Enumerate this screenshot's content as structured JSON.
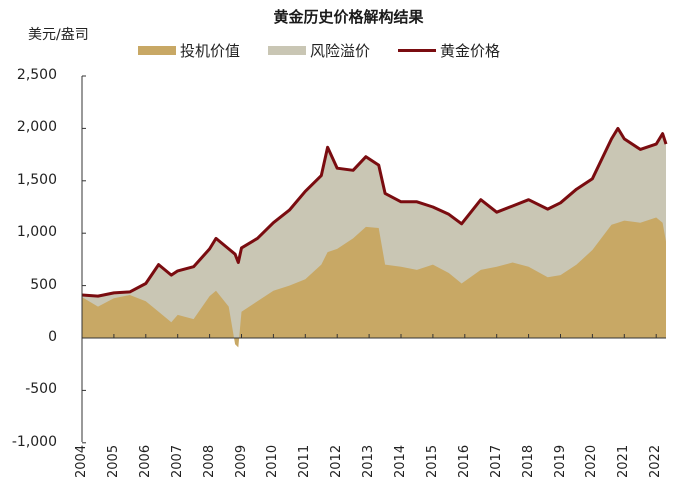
{
  "chart_data": {
    "type": "area",
    "title": "黄金历史价格解构结果",
    "ylabel": "美元/盎司",
    "xlabel": "",
    "ylim": [
      -1000,
      2500
    ],
    "yticks": [
      2500,
      2000,
      1500,
      1000,
      500,
      0,
      -500,
      -1000
    ],
    "ytick_labels": [
      "2,500",
      "2,000",
      "1,500",
      "1,000",
      "500",
      "0",
      "-500",
      "-1,000"
    ],
    "categories": [
      "2004",
      "2005",
      "2006",
      "2007",
      "2008",
      "2009",
      "2010",
      "2011",
      "2012",
      "2013",
      "2014",
      "2015",
      "2016",
      "2017",
      "2018",
      "2019",
      "2020",
      "2021",
      "2022"
    ],
    "legend_position": "top",
    "grid": false,
    "x": [
      2004.0,
      2004.5,
      2005.0,
      2005.5,
      2006.0,
      2006.4,
      2006.8,
      2007.0,
      2007.5,
      2008.0,
      2008.2,
      2008.6,
      2008.8,
      2008.9,
      2009.0,
      2009.5,
      2010.0,
      2010.5,
      2011.0,
      2011.5,
      2011.7,
      2012.0,
      2012.5,
      2012.9,
      2013.3,
      2013.5,
      2014.0,
      2014.5,
      2015.0,
      2015.5,
      2015.9,
      2016.5,
      2017.0,
      2017.5,
      2018.0,
      2018.6,
      2019.0,
      2019.5,
      2020.0,
      2020.6,
      2020.8,
      2021.0,
      2021.5,
      2022.0,
      2022.2,
      2022.4
    ],
    "series": [
      {
        "name": "投机价值",
        "color": "#c8a865",
        "kind": "area",
        "values": [
          390,
          300,
          380,
          410,
          350,
          250,
          150,
          220,
          180,
          400,
          450,
          300,
          -60,
          -90,
          250,
          350,
          450,
          500,
          560,
          700,
          820,
          850,
          950,
          1060,
          1050,
          700,
          680,
          650,
          700,
          620,
          520,
          650,
          680,
          720,
          680,
          580,
          600,
          700,
          840,
          1080,
          1100,
          1120,
          1100,
          1150,
          1100,
          920
        ]
      },
      {
        "name": "风险溢价",
        "color": "#c9c6b4",
        "kind": "area_total",
        "values": [
          410,
          400,
          430,
          440,
          520,
          700,
          600,
          640,
          680,
          850,
          950,
          850,
          800,
          720,
          860,
          950,
          1100,
          1220,
          1400,
          1550,
          1820,
          1620,
          1600,
          1730,
          1650,
          1380,
          1300,
          1300,
          1250,
          1180,
          1090,
          1320,
          1200,
          1260,
          1320,
          1230,
          1290,
          1420,
          1520,
          1900,
          2000,
          1900,
          1800,
          1850,
          1950,
          1850
        ]
      },
      {
        "name": "黄金价格",
        "color": "#7a0c10",
        "kind": "line",
        "values": [
          410,
          400,
          430,
          440,
          520,
          700,
          600,
          640,
          680,
          850,
          950,
          850,
          800,
          720,
          860,
          950,
          1100,
          1220,
          1400,
          1550,
          1820,
          1620,
          1600,
          1730,
          1650,
          1380,
          1300,
          1300,
          1250,
          1180,
          1090,
          1320,
          1200,
          1260,
          1320,
          1230,
          1290,
          1420,
          1520,
          1900,
          2000,
          1900,
          1800,
          1850,
          1950,
          1850
        ]
      }
    ]
  },
  "legend": {
    "items": [
      {
        "label": "投机价值",
        "color": "#c8a865"
      },
      {
        "label": "风险溢价",
        "color": "#c9c6b4"
      },
      {
        "label": "黄金价格",
        "color": "#7a0c10"
      }
    ]
  }
}
